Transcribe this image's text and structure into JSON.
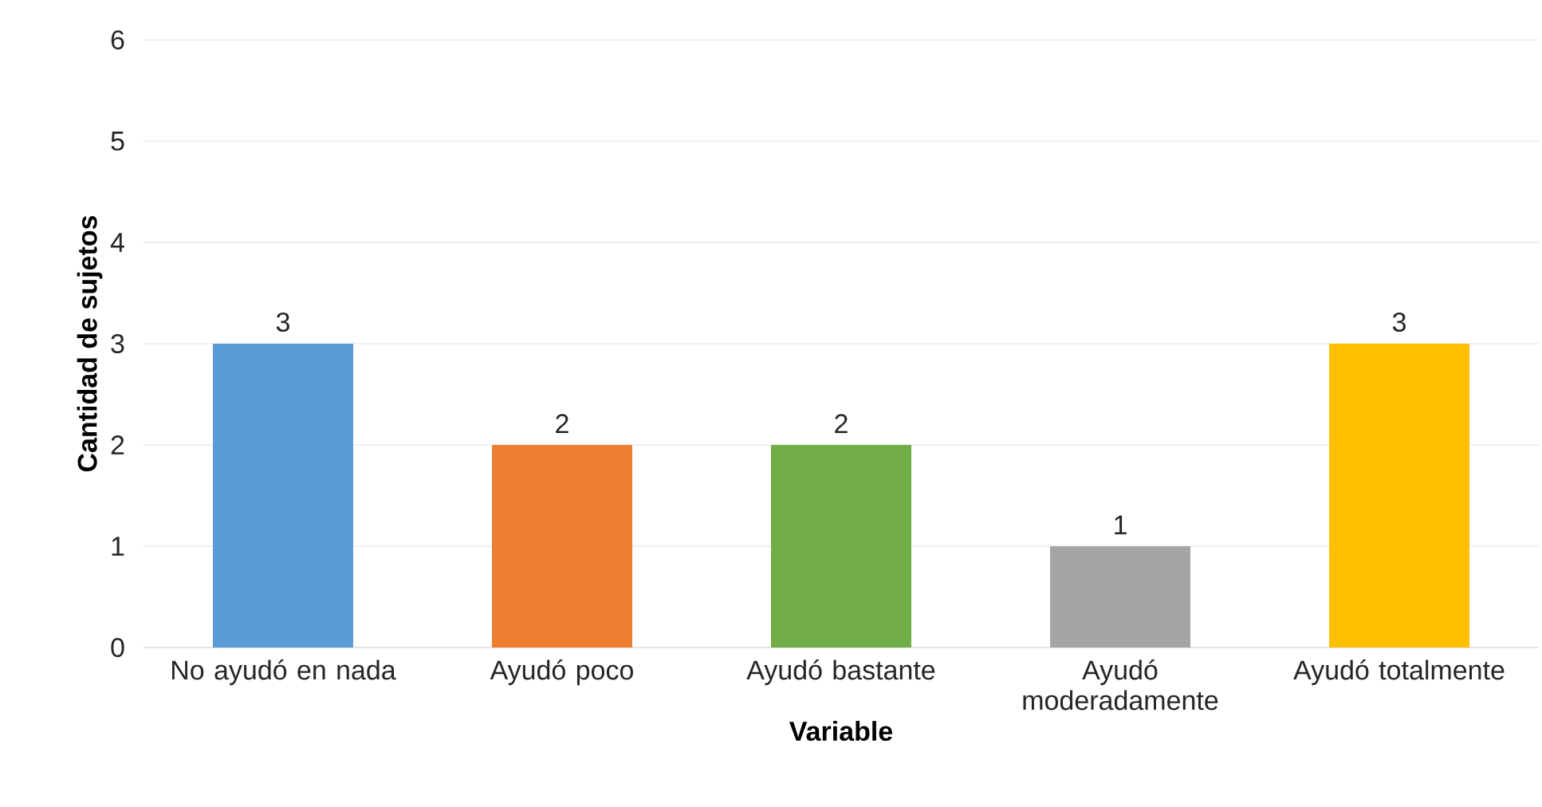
{
  "chart_data": {
    "type": "bar",
    "xlabel": "Variable",
    "ylabel": "Cantidad de sujetos",
    "categories": [
      "No ayudó en nada",
      "Ayudó poco",
      "Ayudó bastante",
      "Ayudó moderadamente",
      "Ayudó totalmente"
    ],
    "values": [
      3,
      2,
      2,
      1,
      3
    ],
    "colors": [
      "#5b9bd5",
      "#ed7d31",
      "#70ad47",
      "#a5a5a5",
      "#ffc000"
    ],
    "ylim": [
      0,
      6
    ],
    "yticks": [
      0,
      1,
      2,
      3,
      4,
      5,
      6
    ],
    "grid": "y",
    "data_labels": true
  }
}
